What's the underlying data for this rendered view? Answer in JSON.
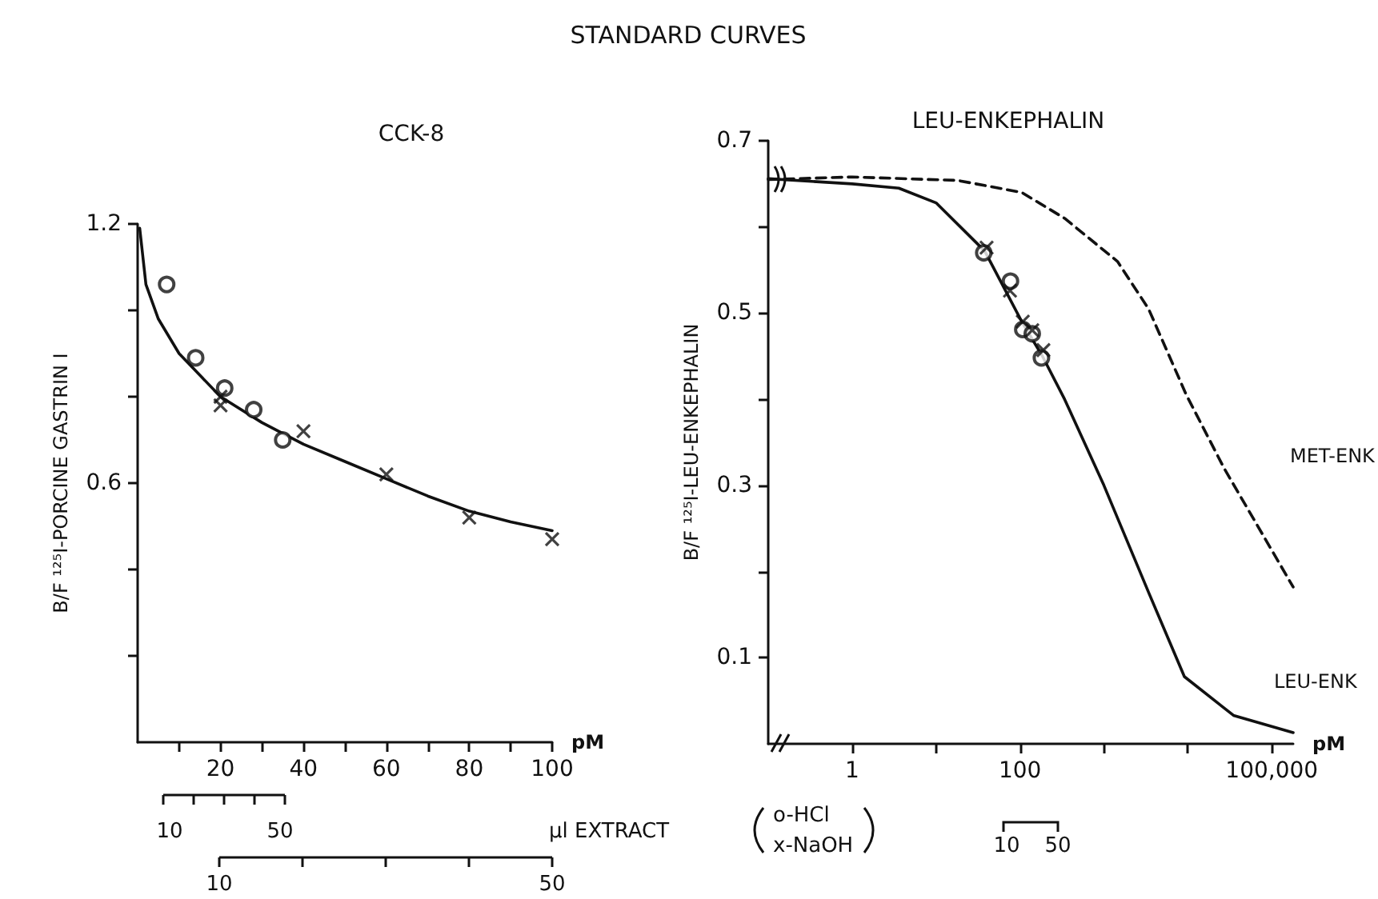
{
  "chart_data": [
    {
      "type": "line",
      "title": "CCK-8",
      "xlabel": "pM",
      "ylabel": "B/F ¹²⁵I-PORCINE GASTRIN I",
      "annotations": [
        "STANDARD CURVES",
        "10",
        "50",
        "10",
        "50",
        "µl EXTRACT",
        "o-HCl",
        "x-NaOH"
      ],
      "xlim": [
        0,
        100
      ],
      "xticks": [
        {
          "value": 10,
          "label": null
        },
        20,
        {
          "value": 30,
          "label": null
        },
        40,
        {
          "value": 50,
          "label": null
        },
        60,
        {
          "value": 70,
          "label": null
        },
        80,
        {
          "value": 90,
          "label": null
        },
        100
      ],
      "ylim": [
        0,
        1.2
      ],
      "yticks": [
        {
          "value": 0.2,
          "label": null
        },
        {
          "value": 0.4,
          "label": null
        },
        0.6,
        {
          "value": 0.8,
          "label": null
        },
        {
          "value": 1.0,
          "label": null
        },
        1.2
      ],
      "series": [
        {
          "color": "#111111",
          "marker": "none",
          "line_style": "solid",
          "x": [
            0.5,
            2,
            5,
            10,
            15,
            20,
            30,
            40,
            50,
            60,
            70,
            80,
            90,
            100
          ],
          "values": [
            1.19,
            1.06,
            0.98,
            0.9,
            0.85,
            0.8,
            0.74,
            0.69,
            0.65,
            0.61,
            0.57,
            0.535,
            0.51,
            0.49
          ]
        },
        {
          "type": "scatter",
          "color": "#111111",
          "marker": "circle",
          "x": [
            7,
            14,
            21,
            28,
            35
          ],
          "values": [
            1.06,
            0.89,
            0.82,
            0.77,
            0.7
          ]
        },
        {
          "type": "scatter",
          "color": "#111111",
          "marker": "cross",
          "x": [
            20,
            20,
            40,
            60,
            80,
            100
          ],
          "values": [
            0.8,
            0.78,
            0.72,
            0.62,
            0.52,
            0.47
          ]
        }
      ]
    },
    {
      "type": "line",
      "title": "LEU-ENKEPHALIN",
      "xlabel": "pM",
      "ylabel": "B/F ¹²⁵I-LEU-ENKEPHALIN",
      "log": "x",
      "annotations": [
        "10",
        "50"
      ],
      "xlim": [
        0.1,
        180000
      ],
      "xticks": [
        1,
        {
          "value": 10,
          "label": null
        },
        100,
        {
          "value": 1000,
          "label": null
        },
        {
          "value": 10000,
          "label": null
        },
        {
          "value": 100000,
          "label": "100,000"
        }
      ],
      "ylim": [
        0,
        0.7
      ],
      "yticks": [
        0.1,
        {
          "value": 0.2,
          "label": null
        },
        0.3,
        {
          "value": 0.4,
          "label": null
        },
        0.5,
        {
          "value": 0.6,
          "label": null
        },
        0.7
      ],
      "series": [
        {
          "name": "LEU-ENK",
          "color": "#111111",
          "marker": "none",
          "line_style": "solid",
          "x": [
            0.1,
            1,
            3.6,
            10,
            38,
            105,
            185,
            340,
            1000,
            3400,
            9100,
            35000,
            180000
          ],
          "values": [
            0.656,
            0.65,
            0.645,
            0.628,
            0.572,
            0.49,
            0.45,
            0.4,
            0.3,
            0.176,
            0.078,
            0.033,
            0.013
          ]
        },
        {
          "name": "MET-ENK",
          "color": "#111111",
          "marker": "none",
          "line_style": "dashed",
          "x": [
            0.1,
            1,
            18,
            105,
            340,
            1450,
            3400,
            9600,
            27000,
            180000
          ],
          "values": [
            0.655,
            0.658,
            0.654,
            0.64,
            0.61,
            0.56,
            0.505,
            0.405,
            0.32,
            0.182
          ]
        },
        {
          "type": "scatter",
          "color": "#111111",
          "marker": "circle",
          "x": [
            37,
            77,
            108,
            140,
            180
          ],
          "values": [
            0.57,
            0.537,
            0.481,
            0.476,
            0.448
          ]
        },
        {
          "type": "scatter",
          "color": "#111111",
          "marker": "cross",
          "x": [
            40,
            76,
            108,
            140,
            190
          ],
          "values": [
            0.576,
            0.526,
            0.49,
            0.48,
            0.457
          ]
        }
      ]
    }
  ]
}
